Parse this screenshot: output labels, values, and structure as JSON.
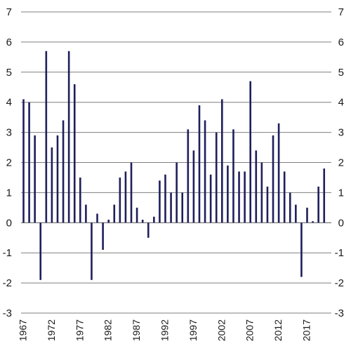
{
  "chart_data": {
    "type": "bar",
    "x": [
      1967,
      1968,
      1969,
      1970,
      1971,
      1972,
      1973,
      1974,
      1975,
      1976,
      1977,
      1978,
      1979,
      1980,
      1981,
      1982,
      1983,
      1984,
      1985,
      1986,
      1987,
      1988,
      1989,
      1990,
      1991,
      1992,
      1993,
      1994,
      1995,
      1996,
      1997,
      1998,
      1999,
      2000,
      2001,
      2002,
      2003,
      2004,
      2005,
      2006,
      2007,
      2008,
      2009,
      2010,
      2011,
      2012,
      2013,
      2014,
      2015,
      2016,
      2017,
      2018,
      2019,
      2020
    ],
    "series": [
      {
        "values": [
          4.1,
          4.0,
          2.9,
          -1.9,
          5.7,
          2.5,
          2.9,
          3.4,
          5.7,
          4.6,
          1.5,
          0.6,
          -1.9,
          0.3,
          -0.9,
          0.1,
          0.6,
          1.5,
          1.7,
          2.0,
          0.5,
          0.1,
          -0.5,
          0.2,
          1.4,
          1.6,
          1.0,
          2.0,
          1.0,
          3.1,
          2.4,
          3.9,
          3.4,
          1.6,
          3.0,
          4.1,
          1.9,
          3.1,
          1.7,
          1.7,
          4.7,
          2.4,
          2.0,
          1.2,
          2.9,
          3.3,
          1.7,
          1.0,
          0.6,
          -1.8,
          0.5,
          0.05,
          1.2,
          1.8
        ]
      }
    ],
    "x_tick_labels": [
      "1967",
      "1972",
      "1977",
      "1982",
      "1987",
      "1992",
      "1997",
      "2002",
      "2007",
      "2012",
      "2017"
    ],
    "y_ticks": [
      -3,
      -2,
      -1,
      0,
      1,
      2,
      3,
      4,
      5,
      6,
      7
    ],
    "y_tick_labels": [
      "-3",
      "-2",
      "-1",
      "0",
      "1",
      "2",
      "3",
      "4",
      "5",
      "6",
      "7"
    ],
    "ylim": [
      -3,
      7
    ],
    "grid": true,
    "bar_color": "#1f1f5c",
    "grid_color": "#7f7f7f",
    "title": "",
    "xlabel": "",
    "ylabel": ""
  }
}
